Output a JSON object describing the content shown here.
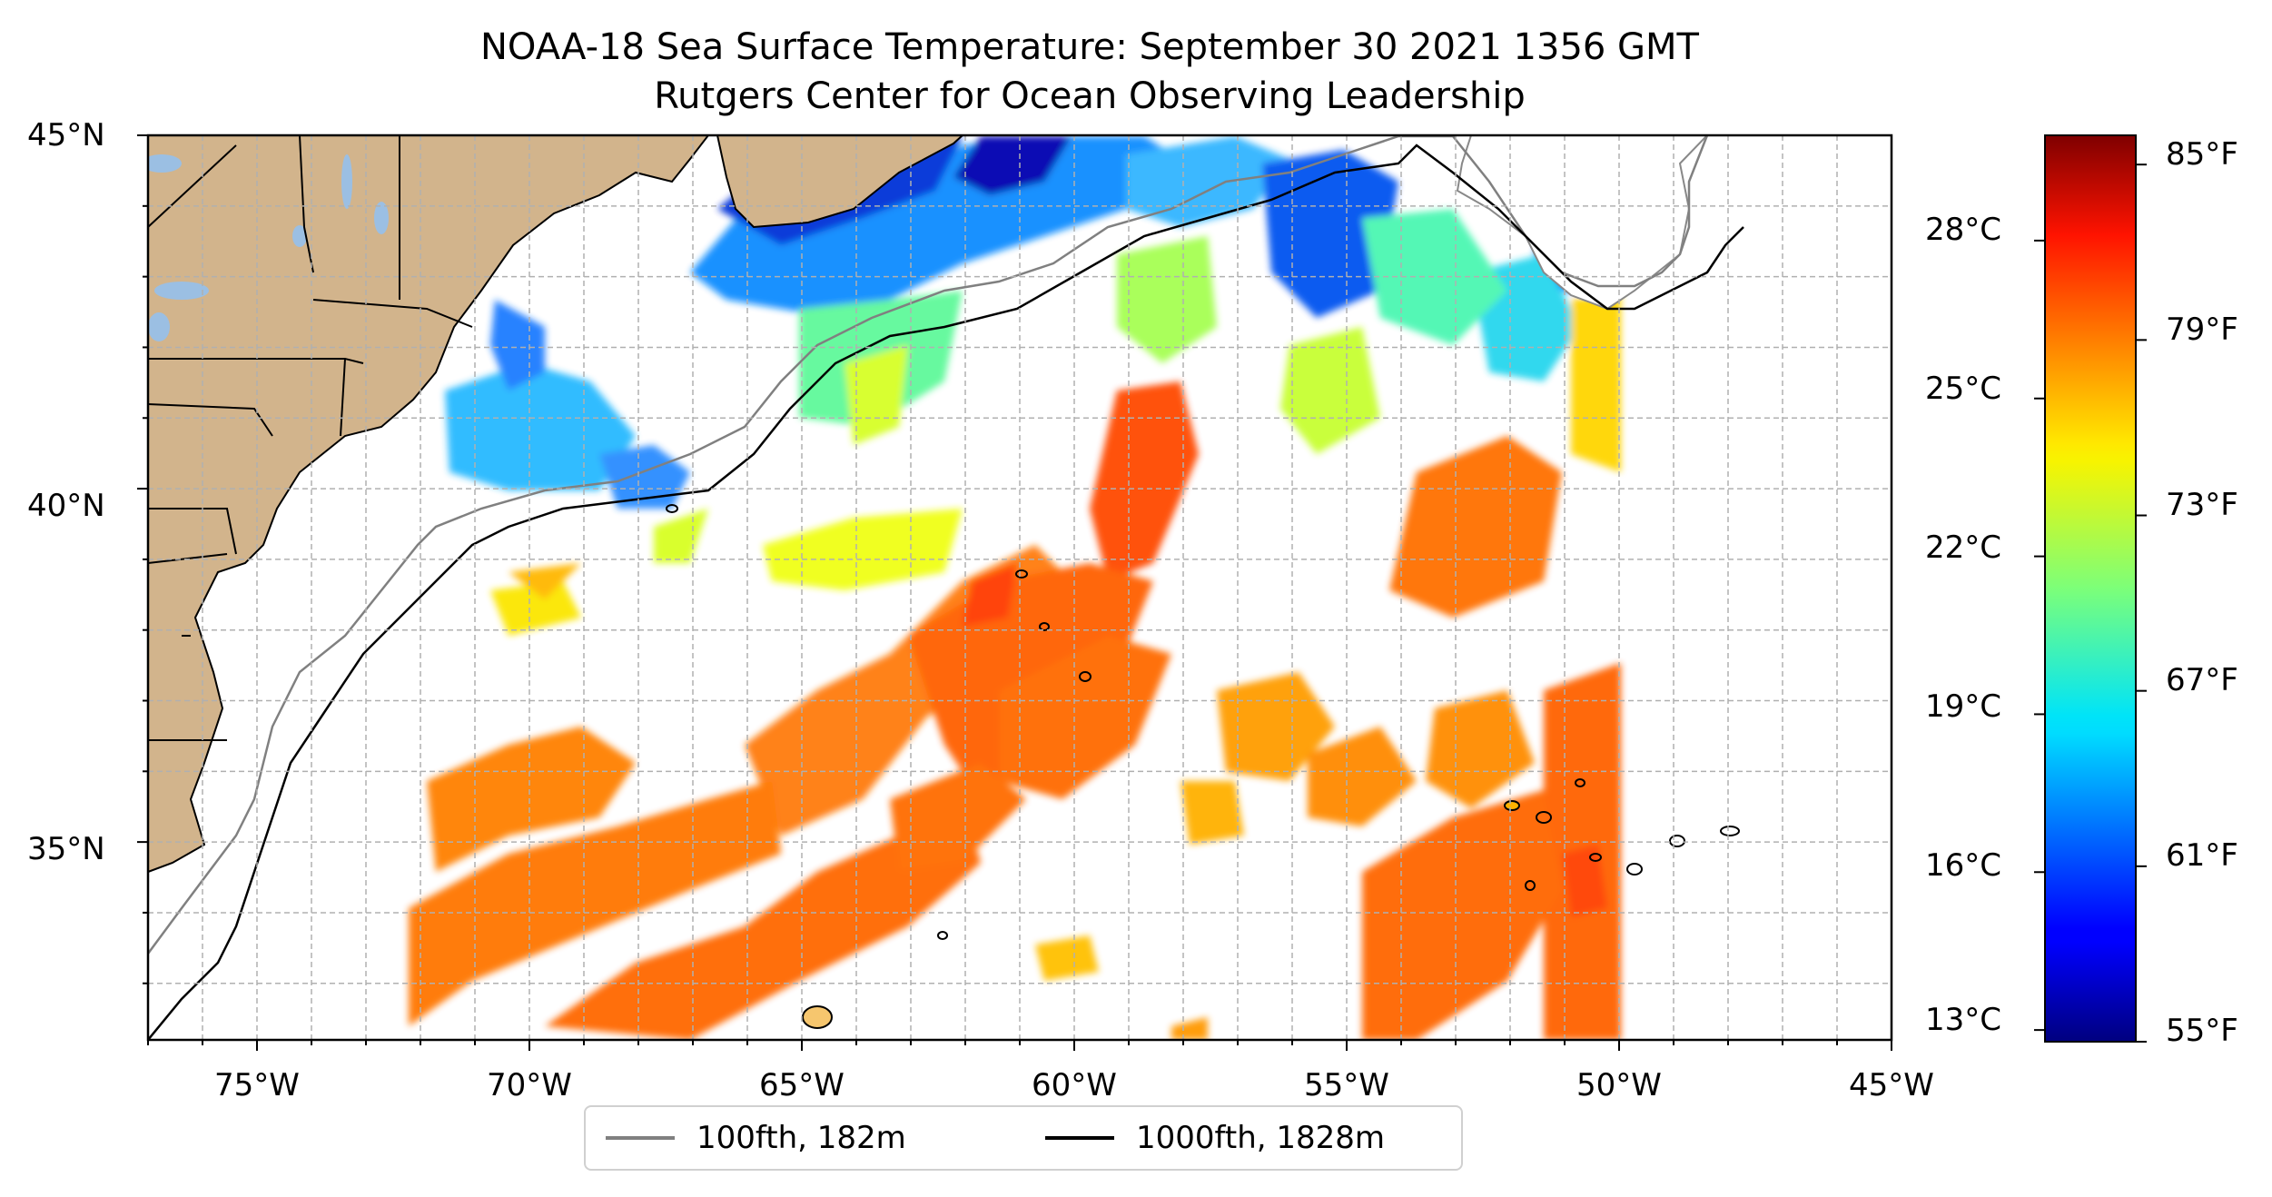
{
  "title": {
    "line1": "NOAA-18 Sea Surface Temperature: September 30 2021 1356 GMT",
    "line2": "Rutgers Center for Ocean Observing Leadership"
  },
  "map": {
    "lon_range": [
      -77,
      -45
    ],
    "lat_range": [
      32.2,
      45
    ],
    "lat_ticks": [
      {
        "value": 45,
        "label": "45°N"
      },
      {
        "value": 40,
        "label": "40°N"
      },
      {
        "value": 35,
        "label": "35°N"
      }
    ],
    "lon_ticks": [
      {
        "value": -75,
        "label": "75°W"
      },
      {
        "value": -70,
        "label": "70°W"
      },
      {
        "value": -65,
        "label": "65°W"
      },
      {
        "value": -60,
        "label": "60°W"
      },
      {
        "value": -55,
        "label": "55°W"
      },
      {
        "value": -50,
        "label": "50°W"
      },
      {
        "value": -45,
        "label": "45°W"
      }
    ],
    "gridlines": "dashed, every 1 degree",
    "colors": {
      "land": "#d2b48c",
      "lakes": "#9bbfe3",
      "isobath_100fth": "#808080",
      "isobath_1000fth": "#000000"
    }
  },
  "colorbar": {
    "colormap": "jet",
    "range_f": [
      55,
      86
    ],
    "celsius_labels": [
      "28°C",
      "25°C",
      "22°C",
      "19°C",
      "16°C",
      "13°C"
    ],
    "celsius_values": [
      28,
      25,
      22,
      19,
      16,
      13
    ],
    "fahrenheit_labels": [
      "85°F",
      "79°F",
      "73°F",
      "67°F",
      "61°F",
      "55°F"
    ],
    "fahrenheit_values": [
      85,
      79,
      73,
      67,
      61,
      55
    ]
  },
  "legend": {
    "location": "below map, center",
    "items": [
      {
        "label": "100fth, 182m",
        "color": "#808080"
      },
      {
        "label": "1000fth, 1828m",
        "color": "#000000"
      }
    ]
  }
}
